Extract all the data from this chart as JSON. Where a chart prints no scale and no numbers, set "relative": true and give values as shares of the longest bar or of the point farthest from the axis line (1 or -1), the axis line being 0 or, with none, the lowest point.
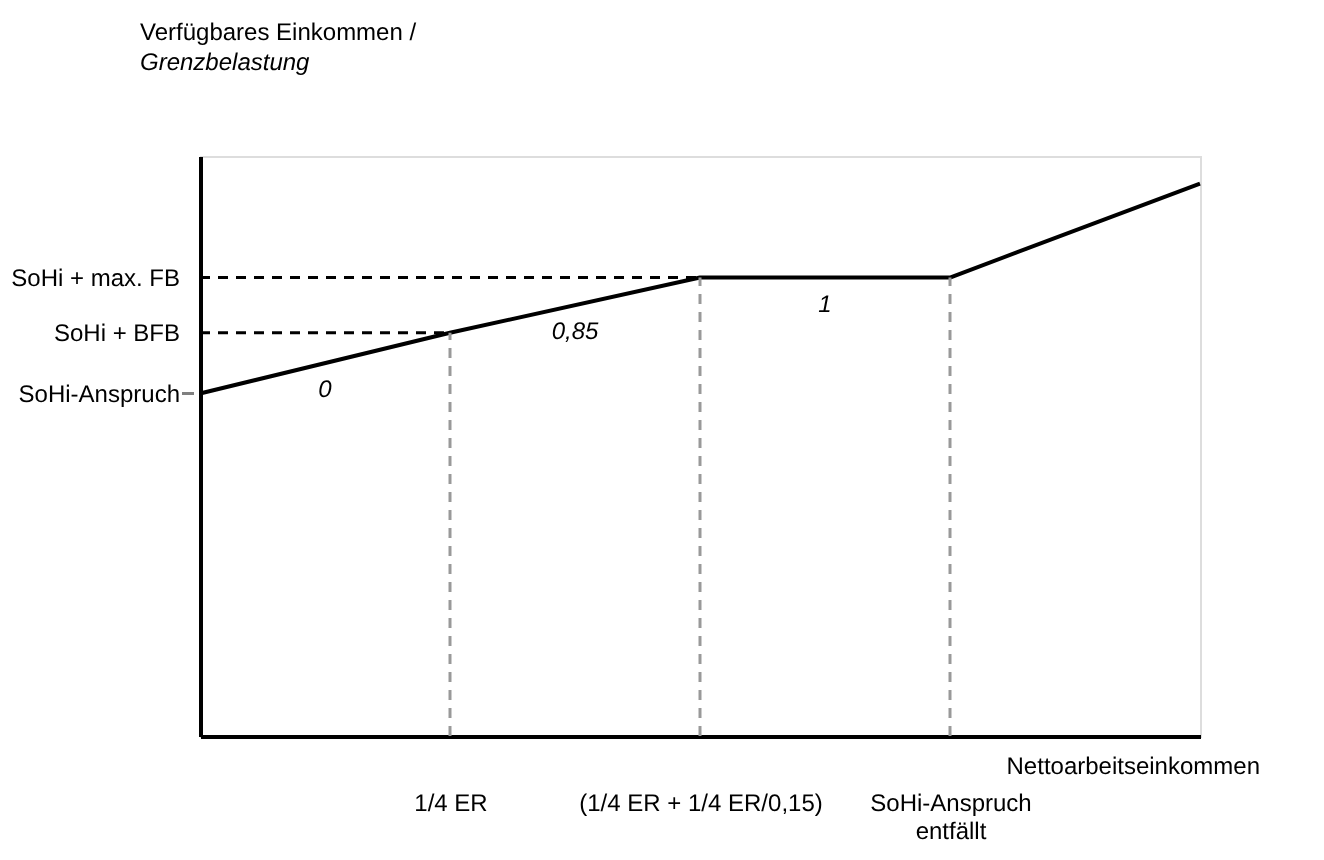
{
  "chart_data": {
    "type": "line",
    "relative": true,
    "ylabel": "Verfügbares Einkommen / Grenzbelastung",
    "xlabel": "Nettoarbeitseinkommen",
    "categories": [
      null,
      "1/4 ER",
      "(1/4 ER + 1/4 ER/0,15)",
      "SoHi-Anspruch entfällt",
      null
    ],
    "series": [
      {
        "color": "#000000",
        "values": [
          0.62,
          0.73,
          0.83,
          0.83,
          1.0
        ]
      }
    ],
    "ref_lines": [
      {
        "axis": "y",
        "value": 0.83,
        "label": "SoHi + max. FB",
        "line_style": "dashed",
        "color": "#000000"
      },
      {
        "axis": "y",
        "value": 0.73,
        "label": "SoHi + BFB",
        "line_style": "dashed",
        "color": "#000000"
      },
      {
        "axis": "y",
        "value": 0.62,
        "label": "SoHi-Anspruch",
        "line_style": "solid",
        "color": "#808080"
      },
      {
        "axis": "x",
        "value": "1/4 ER",
        "line_style": "dashed",
        "color": "#999999"
      },
      {
        "axis": "x",
        "value": "(1/4 ER + 1/4 ER/0,15)",
        "line_style": "dashed",
        "color": "#999999"
      },
      {
        "axis": "x",
        "value": "SoHi-Anspruch entfällt",
        "line_style": "dashed",
        "color": "#999999"
      }
    ],
    "annotations": [
      "0",
      "0,85",
      "1"
    ],
    "grid": false,
    "marker": "none",
    "line_style": "solid"
  }
}
